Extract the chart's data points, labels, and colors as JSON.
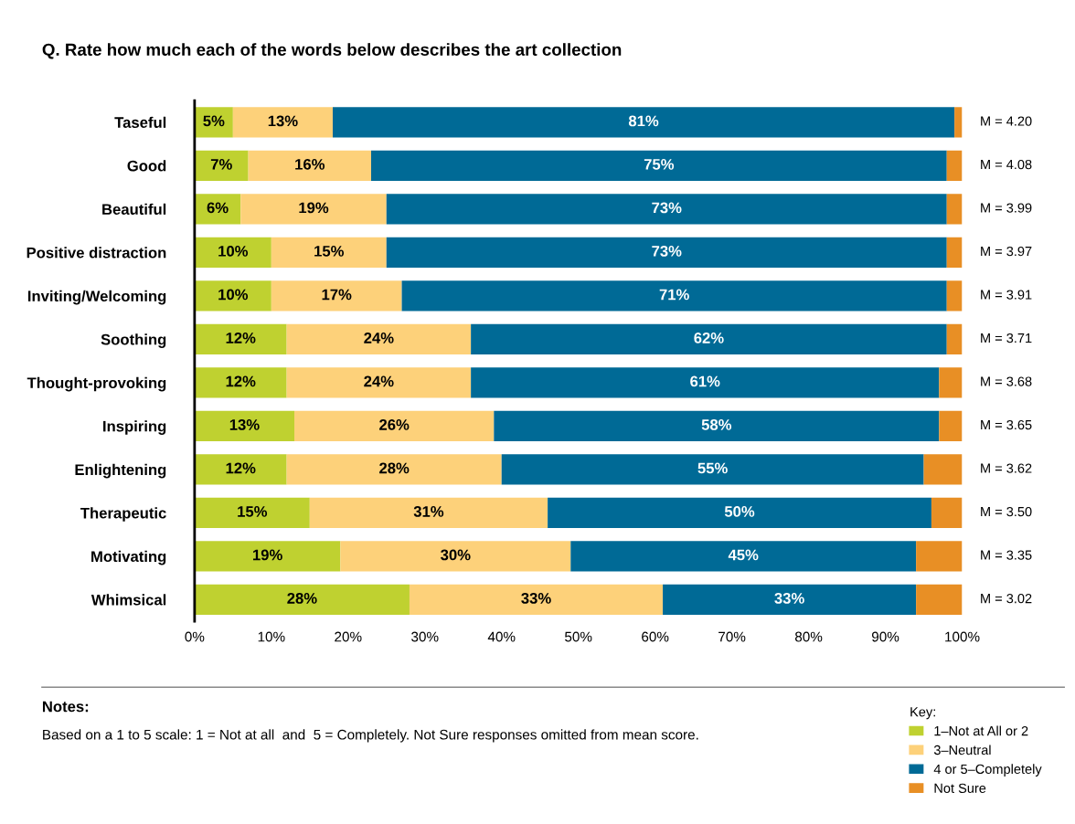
{
  "chart_data": {
    "type": "bar",
    "orientation": "horizontal",
    "stacked": true,
    "title": "Q. Rate how much each of the words below describes the art collection",
    "categories": [
      "Taseful",
      "Good",
      "Beautiful",
      "Positive distraction",
      "Inviting/Welcoming",
      "Soothing",
      "Thought-provoking",
      "Inspiring",
      "Enlightening",
      "Therapeutic",
      "Motivating",
      "Whimsical"
    ],
    "series": [
      {
        "name": "1–Not at All or 2",
        "color": "#bfd130",
        "values": [
          5,
          7,
          6,
          10,
          10,
          12,
          12,
          13,
          12,
          15,
          19,
          28
        ],
        "value_labels": [
          "5%",
          "7%",
          "6%",
          "10%",
          "10%",
          "12%",
          "12%",
          "13%",
          "12%",
          "15%",
          "19%",
          "28%"
        ]
      },
      {
        "name": "3–Neutral",
        "color": "#fdd17a",
        "values": [
          13,
          16,
          19,
          15,
          17,
          24,
          24,
          26,
          28,
          31,
          30,
          33
        ],
        "value_labels": [
          "13%",
          "16%",
          "19%",
          "15%",
          "17%",
          "24%",
          "24%",
          "26%",
          "28%",
          "31%",
          "30%",
          "33%"
        ]
      },
      {
        "name": "4 or 5–Completely",
        "color": "#006a96",
        "values": [
          81,
          75,
          73,
          73,
          71,
          62,
          61,
          58,
          55,
          50,
          45,
          33
        ],
        "value_labels": [
          "81%",
          "75%",
          "73%",
          "73%",
          "71%",
          "62%",
          "61%",
          "58%",
          "55%",
          "50%",
          "45%",
          "33%"
        ]
      },
      {
        "name": "Not Sure",
        "color": "#e88f25",
        "values": [
          1,
          2,
          2,
          2,
          2,
          2,
          3,
          3,
          5,
          4,
          6,
          6
        ]
      }
    ],
    "xlim": [
      0,
      100
    ],
    "xticks": [
      {
        "value": 0,
        "label": "0%"
      },
      {
        "value": 10,
        "label": "10%"
      },
      {
        "value": 20,
        "label": "20%"
      },
      {
        "value": 30,
        "label": "30%"
      },
      {
        "value": 40,
        "label": "40%"
      },
      {
        "value": 50,
        "label": "50%"
      },
      {
        "value": 60,
        "label": "60%"
      },
      {
        "value": 70,
        "label": "70%"
      },
      {
        "value": 80,
        "label": "80%"
      },
      {
        "value": 90,
        "label": "90%"
      },
      {
        "value": 100,
        "label": "100%"
      }
    ],
    "grid": false,
    "legend": "bottom right",
    "legend_title": "Key:",
    "annotations": [
      "M = 4.20",
      "M = 4.08",
      "M = 3.99",
      "M = 3.97",
      "M = 3.91",
      "M = 3.71",
      "M = 3.68",
      "M = 3.65",
      "M = 3.62",
      "M = 3.50",
      "M = 3.35",
      "M = 3.02",
      "Notes:",
      "Based on a 1 to 5 scale: 1 = Not at all  and  5 = Completely. Not Sure responses omitted from mean score."
    ]
  }
}
